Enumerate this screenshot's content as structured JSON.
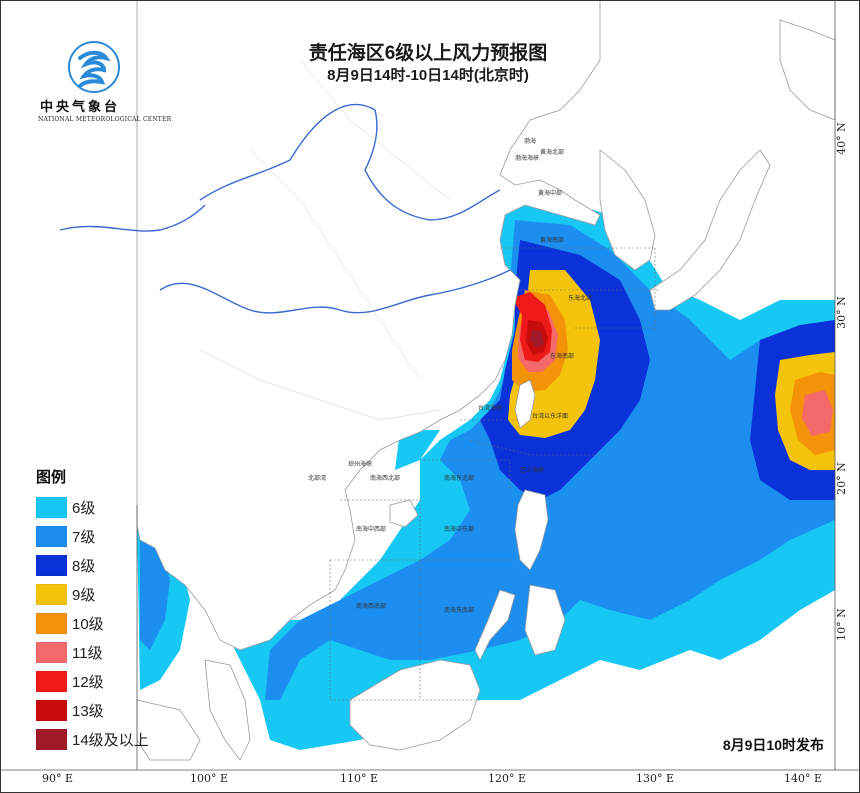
{
  "map": {
    "title": "责任海区6级以上风力预报图",
    "subtitle": "8月9日14时-10日14时(北京时)",
    "issued": "8月9日10时发布"
  },
  "logo": {
    "name_cn": "中央气象台",
    "name_en": "NATIONAL METEOROLOGICAL CENTER",
    "emblem": "nmc-emblem-icon"
  },
  "legend": {
    "title": "图例",
    "items": [
      {
        "label": "6级",
        "color": "#18c8f4"
      },
      {
        "label": "7级",
        "color": "#1c8ef0"
      },
      {
        "label": "8级",
        "color": "#0a32d8"
      },
      {
        "label": "9级",
        "color": "#f4c40c"
      },
      {
        "label": "10级",
        "color": "#f49208"
      },
      {
        "label": "11级",
        "color": "#f46a6a"
      },
      {
        "label": "12级",
        "color": "#ee1a1a"
      },
      {
        "label": "13级",
        "color": "#c80c0c"
      },
      {
        "label": "14级及以上",
        "color": "#a01a2a"
      }
    ]
  },
  "axes": {
    "lon_ticks": [
      "90° E",
      "100° E",
      "110° E",
      "120° E",
      "130° E",
      "140° E"
    ],
    "lat_ticks": [
      "10° N",
      "20° N",
      "30° N",
      "40° N"
    ]
  },
  "sea_areas": [
    "渤海",
    "渤海海峡",
    "黄海北部",
    "黄海中部",
    "黄海南部",
    "东海北部",
    "东海南部",
    "台湾海峡",
    "台湾以东洋面",
    "巴士海峡",
    "北部湾",
    "琼州海峡",
    "南海西北部",
    "南海东北部",
    "南海中西部",
    "南海中东部",
    "南海西南部",
    "南海东南部"
  ]
}
